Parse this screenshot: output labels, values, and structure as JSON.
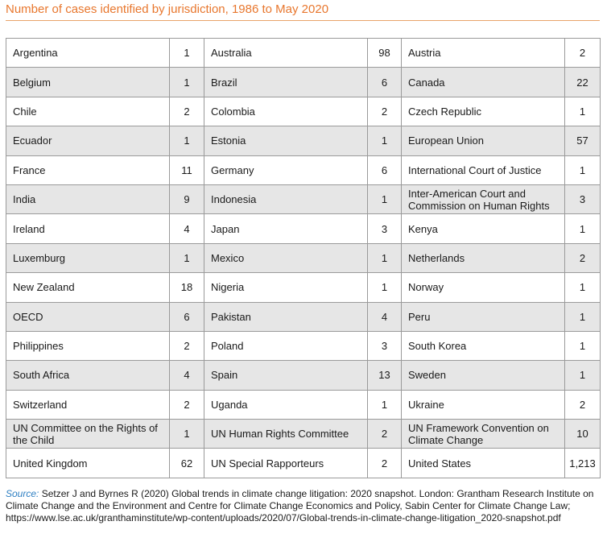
{
  "title": "Number of cases identified by jurisdiction, 1986 to May 2020",
  "rows": [
    [
      [
        "Argentina",
        "1"
      ],
      [
        "Australia",
        "98"
      ],
      [
        "Austria",
        "2"
      ]
    ],
    [
      [
        "Belgium",
        "1"
      ],
      [
        "Brazil",
        "6"
      ],
      [
        "Canada",
        "22"
      ]
    ],
    [
      [
        "Chile",
        "2"
      ],
      [
        "Colombia",
        "2"
      ],
      [
        "Czech Republic",
        "1"
      ]
    ],
    [
      [
        "Ecuador",
        "1"
      ],
      [
        "Estonia",
        "1"
      ],
      [
        "European Union",
        "57"
      ]
    ],
    [
      [
        "France",
        "11"
      ],
      [
        "Germany",
        "6"
      ],
      [
        "International Court of Justice",
        "1"
      ]
    ],
    [
      [
        "India",
        "9"
      ],
      [
        "Indonesia",
        "1"
      ],
      [
        "Inter-American Court and Commission on Human Rights",
        "3"
      ]
    ],
    [
      [
        "Ireland",
        "4"
      ],
      [
        "Japan",
        "3"
      ],
      [
        "Kenya",
        "1"
      ]
    ],
    [
      [
        "Luxemburg",
        "1"
      ],
      [
        "Mexico",
        "1"
      ],
      [
        "Netherlands",
        "2"
      ]
    ],
    [
      [
        "New Zealand",
        "18"
      ],
      [
        "Nigeria",
        "1"
      ],
      [
        "Norway",
        "1"
      ]
    ],
    [
      [
        "OECD",
        "6"
      ],
      [
        "Pakistan",
        "4"
      ],
      [
        "Peru",
        "1"
      ]
    ],
    [
      [
        "Philippines",
        "2"
      ],
      [
        "Poland",
        "3"
      ],
      [
        "South Korea",
        "1"
      ]
    ],
    [
      [
        "South Africa",
        "4"
      ],
      [
        "Spain",
        "13"
      ],
      [
        "Sweden",
        "1"
      ]
    ],
    [
      [
        "Switzerland",
        "2"
      ],
      [
        "Uganda",
        "1"
      ],
      [
        "Ukraine",
        "2"
      ]
    ],
    [
      [
        "UN Committee on the Rights of the Child",
        "1"
      ],
      [
        "UN Human Rights Committee",
        "2"
      ],
      [
        "UN Framework Convention on Climate Change",
        "10"
      ]
    ],
    [
      [
        "United Kingdom",
        "62"
      ],
      [
        "UN Special Rapporteurs",
        "2"
      ],
      [
        "United States",
        "1,213"
      ]
    ]
  ],
  "source": {
    "label": "Source:",
    "text": "Setzer J and Byrnes R (2020) Global trends in climate change litigation: 2020 snapshot. London: Grantham Research Institute on Climate Change and the Environment and Centre for Climate Change Economics and Policy, Sabin Center for Climate Change Law; https://www.lse.ac.uk/granthaminstitute/wp-content/uploads/2020/07/Global-trends-in-climate-change-litigation_2020-snapshot.pdf"
  }
}
